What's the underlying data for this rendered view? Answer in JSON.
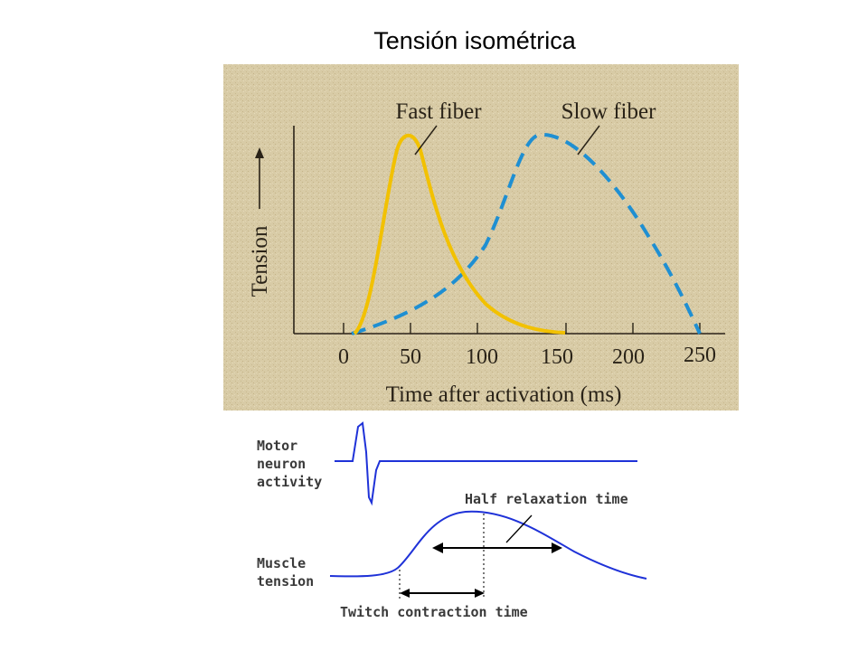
{
  "slide": {
    "title": "Tensión isométrica"
  },
  "upper_panel": {
    "background": "#d8cba6",
    "fast_label": "Fast fiber",
    "slow_label": "Slow fiber",
    "y_label": "Tension",
    "x_label": "Time after activation (ms)",
    "x_ticks": [
      "0",
      "50",
      "100",
      "150",
      "200",
      "250"
    ],
    "fast_color": "#f2c100",
    "slow_color": "#1f8fd2"
  },
  "lower_panel": {
    "motor_label": [
      "Motor",
      "neuron",
      "activity"
    ],
    "muscle_label": [
      "Muscle",
      "tension"
    ],
    "half_relax_label": "Half relaxation time",
    "twitch_label": "Twitch contraction time",
    "trace_color": "#1f32d8"
  }
}
